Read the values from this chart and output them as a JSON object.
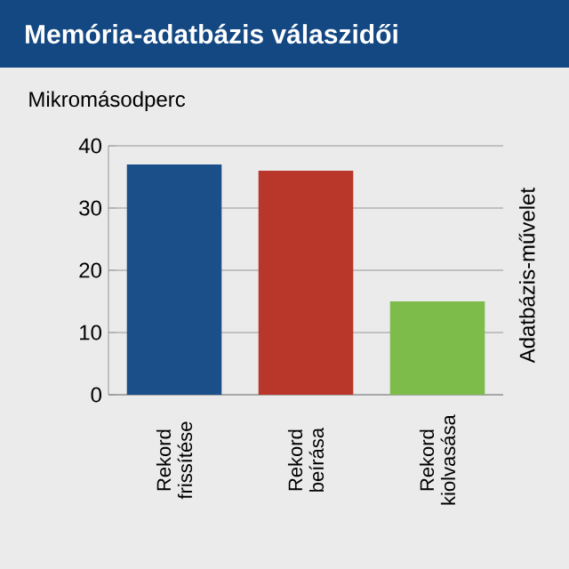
{
  "chart_data": {
    "type": "bar",
    "title": "Memória-adatbázis válaszidői",
    "ylabel": "Mikromásodperc",
    "y2label": "Adatbázis-művelet",
    "categories": [
      "Rekord frissítése",
      "Rekord beírása",
      "Rekord kiolvasása"
    ],
    "values": [
      37,
      36,
      15
    ],
    "colors": [
      "#1a4f8a",
      "#b8372a",
      "#7dbb4a"
    ],
    "ylim": [
      0,
      40
    ],
    "yticks": [
      0,
      10,
      20,
      30,
      40
    ],
    "grid": "y"
  }
}
